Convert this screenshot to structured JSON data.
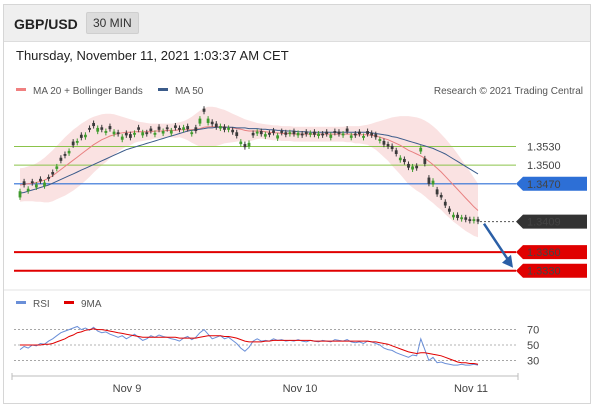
{
  "header": {
    "symbol": "GBP/USD",
    "timeframe": "30 MIN",
    "datetime": "Thursday, November 11, 2021 1:03:37 AM CET"
  },
  "legend": {
    "price": [
      {
        "name": "MA 20 + Bollinger Bands",
        "color": "#f08080"
      },
      {
        "name": "MA 50",
        "color": "#3b5b8a"
      }
    ],
    "rsi": [
      {
        "name": "RSI",
        "color": "#6a8fd8"
      },
      {
        "name": "9MA",
        "color": "#e00000"
      }
    ]
  },
  "credit": "Research © 2021 Trading Central",
  "chart_data": {
    "type": "candlestick",
    "price_ylim": [
      1.3315,
      1.3605
    ],
    "rsi_ylim": [
      15,
      85
    ],
    "x_ticks": [
      "Nov 9",
      "Nov 10",
      "Nov 11"
    ],
    "close": [
      1.3458,
      1.3468,
      1.3462,
      1.3471,
      1.3469,
      1.3474,
      1.3472,
      1.3478,
      1.3485,
      1.3498,
      1.3507,
      1.3515,
      1.3523,
      1.3532,
      1.3539,
      1.3544,
      1.3549,
      1.3557,
      1.3563,
      1.356,
      1.3557,
      1.3555,
      1.3558,
      1.3554,
      1.355,
      1.3546,
      1.3548,
      1.3544,
      1.3552,
      1.3557,
      1.3553,
      1.355,
      1.3555,
      1.3552,
      1.3557,
      1.3555,
      1.3558,
      1.3556,
      1.356,
      1.3557,
      1.3561,
      1.3558,
      1.3553,
      1.3555,
      1.3575,
      1.3586,
      1.3575,
      1.3566,
      1.3561,
      1.3563,
      1.3557,
      1.356,
      1.3553,
      1.3547,
      1.3538,
      1.3529,
      1.3536,
      1.3548,
      1.3554,
      1.355,
      1.355,
      1.3549,
      1.3552,
      1.3548,
      1.3552,
      1.3549,
      1.3553,
      1.355,
      1.3552,
      1.3548,
      1.355,
      1.3552,
      1.3549,
      1.3551,
      1.3548,
      1.355,
      1.3549,
      1.3552,
      1.355,
      1.3551,
      1.3554,
      1.3548,
      1.3548,
      1.355,
      1.3547,
      1.355,
      1.3548,
      1.3545,
      1.3542,
      1.3533,
      1.353,
      1.3526,
      1.3518,
      1.3512,
      1.3505,
      1.3496,
      1.3498,
      1.3495,
      1.3528,
      1.3502,
      1.347,
      1.3475,
      1.3453,
      1.3448,
      1.3435,
      1.3425,
      1.342,
      1.3415,
      1.3416,
      1.3412,
      1.341,
      1.3413,
      1.3409
    ],
    "open_offsets": [
      -0.001,
      0.0006,
      -0.0004,
      0.0003,
      -0.0005,
      0.0004,
      -0.0006,
      0.0003,
      0.0004,
      -0.0004,
      0.0005,
      0.0003,
      -0.0004,
      0.0006,
      -0.0003,
      0.0005,
      -0.0004,
      0.0003,
      0.0005,
      -0.0006,
      0.0004,
      -0.0003,
      0.0005,
      -0.0004,
      0.0003,
      -0.0005,
      0.0004,
      0.0006,
      -0.0003,
      0.0004,
      -0.0005,
      0.0003,
      0.0004,
      -0.0003,
      0.0005,
      -0.0004,
      0.0003,
      -0.0005,
      0.0004,
      0.0003,
      -0.0004,
      0.0005,
      -0.0003,
      0.0006,
      -0.0008,
      0.0005,
      -0.0007,
      0.0004,
      0.0006,
      -0.0004,
      0.0005,
      -0.0003,
      0.0004,
      0.0006,
      -0.0004,
      0.0005,
      -0.0006,
      0.0004,
      -0.0003,
      0.0005,
      -0.0004,
      0.0003,
      0.0004,
      -0.0005,
      0.0003,
      0.0004,
      -0.0003,
      0.0005,
      -0.0004,
      0.0003,
      0.0004,
      -0.0003,
      0.0005,
      -0.0004,
      0.0003,
      0.0004,
      -0.0005,
      0.0003,
      0.0004,
      -0.0003,
      0.0005,
      -0.0004,
      0.0003,
      0.0004,
      -0.0003,
      0.0005,
      0.0004,
      0.0005,
      -0.0003,
      0.0006,
      0.0004,
      0.0005,
      0.0006,
      -0.0004,
      0.0005,
      0.0006,
      -0.0005,
      0.0004,
      -0.0006,
      0.0009,
      0.001,
      -0.0006,
      0.0008,
      0.0004,
      0.0006,
      0.0005,
      -0.0004,
      0.0005,
      -0.0003,
      0.0004,
      0.0003,
      -0.0003,
      0.0004
    ],
    "ma20": [
      1.3468,
      1.3469,
      1.347,
      1.3471,
      1.3472,
      1.3474,
      1.3476,
      1.3479,
      1.3483,
      1.3488,
      1.3493,
      1.3498,
      1.3503,
      1.3508,
      1.3513,
      1.3518,
      1.3523,
      1.3528,
      1.3533,
      1.3537,
      1.3541,
      1.3544,
      1.3547,
      1.3549,
      1.3551,
      1.3552,
      1.3553,
      1.3553,
      1.3554,
      1.3554,
      1.3554,
      1.3554,
      1.3554,
      1.3555,
      1.3555,
      1.3555,
      1.3556,
      1.3556,
      1.3556,
      1.3557,
      1.3557,
      1.3557,
      1.3557,
      1.3558,
      1.3559,
      1.3561,
      1.3562,
      1.3562,
      1.3562,
      1.3562,
      1.3562,
      1.3561,
      1.356,
      1.3559,
      1.3558,
      1.3556,
      1.3555,
      1.3555,
      1.3555,
      1.3555,
      1.3554,
      1.3553,
      1.3552,
      1.3552,
      1.3551,
      1.3551,
      1.3551,
      1.355,
      1.355,
      1.355,
      1.355,
      1.355,
      1.355,
      1.355,
      1.355,
      1.355,
      1.355,
      1.355,
      1.355,
      1.355,
      1.355,
      1.355,
      1.3549,
      1.3549,
      1.3549,
      1.3549,
      1.3548,
      1.3547,
      1.3545,
      1.3543,
      1.3541,
      1.3538,
      1.3535,
      1.3532,
      1.3528,
      1.3524,
      1.3521,
      1.3518,
      1.3515,
      1.3511,
      1.3506,
      1.3501,
      1.3495,
      1.3489,
      1.3482,
      1.3475,
      1.3468,
      1.3461,
      1.3454,
      1.3447,
      1.344,
      1.3433,
      1.3427
    ],
    "bb_upper": [
      1.3495,
      1.3496,
      1.3498,
      1.35,
      1.3503,
      1.3507,
      1.3512,
      1.3518,
      1.3524,
      1.3531,
      1.3538,
      1.3545,
      1.3551,
      1.3557,
      1.3562,
      1.3567,
      1.3571,
      1.3575,
      1.3578,
      1.358,
      1.3582,
      1.3583,
      1.3583,
      1.3582,
      1.358,
      1.3578,
      1.3576,
      1.3574,
      1.3572,
      1.357,
      1.3569,
      1.3568,
      1.3567,
      1.3567,
      1.3567,
      1.3567,
      1.3567,
      1.3567,
      1.3568,
      1.3569,
      1.3571,
      1.3574,
      1.3578,
      1.3583,
      1.3588,
      1.3592,
      1.3594,
      1.3594,
      1.3593,
      1.3591,
      1.3589,
      1.3586,
      1.3583,
      1.358,
      1.3577,
      1.3574,
      1.3572,
      1.357,
      1.3568,
      1.3567,
      1.3566,
      1.3565,
      1.3564,
      1.3564,
      1.3563,
      1.3563,
      1.3563,
      1.3562,
      1.3562,
      1.3562,
      1.3562,
      1.3562,
      1.3562,
      1.3562,
      1.3562,
      1.3562,
      1.3562,
      1.3562,
      1.3562,
      1.3562,
      1.3563,
      1.3563,
      1.3563,
      1.3563,
      1.3564,
      1.3565,
      1.3567,
      1.3569,
      1.3571,
      1.3573,
      1.3575,
      1.3577,
      1.3578,
      1.3579,
      1.3579,
      1.3579,
      1.3578,
      1.3577,
      1.3575,
      1.3572,
      1.3568,
      1.3563,
      1.3557,
      1.355,
      1.3543,
      1.3535,
      1.3527,
      1.3518,
      1.3509,
      1.35,
      1.349,
      1.348,
      1.347
    ],
    "bb_lower": [
      1.3441,
      1.3442,
      1.3442,
      1.3442,
      1.3441,
      1.3441,
      1.344,
      1.344,
      1.3442,
      1.3445,
      1.3448,
      1.3451,
      1.3455,
      1.3459,
      1.3464,
      1.3469,
      1.3475,
      1.3481,
      1.3488,
      1.3494,
      1.35,
      1.3505,
      1.3511,
      1.3516,
      1.3522,
      1.3526,
      1.353,
      1.3532,
      1.3536,
      1.3538,
      1.3539,
      1.354,
      1.3541,
      1.3543,
      1.3543,
      1.3543,
      1.3545,
      1.3545,
      1.3544,
      1.3545,
      1.3543,
      1.354,
      1.3536,
      1.3533,
      1.353,
      1.353,
      1.353,
      1.353,
      1.3531,
      1.3533,
      1.3535,
      1.3536,
      1.3537,
      1.3538,
      1.3539,
      1.3538,
      1.3538,
      1.354,
      1.3542,
      1.3543,
      1.3542,
      1.3541,
      1.354,
      1.354,
      1.3539,
      1.3539,
      1.3539,
      1.3538,
      1.3538,
      1.3538,
      1.3538,
      1.3538,
      1.3538,
      1.3538,
      1.3538,
      1.3538,
      1.3538,
      1.3538,
      1.3538,
      1.3538,
      1.3537,
      1.3537,
      1.3535,
      1.3535,
      1.3534,
      1.3533,
      1.3529,
      1.3525,
      1.3519,
      1.3513,
      1.3507,
      1.3499,
      1.3492,
      1.3485,
      1.3477,
      1.3469,
      1.3464,
      1.3459,
      1.3455,
      1.345,
      1.3444,
      1.3439,
      1.3433,
      1.3428,
      1.3421,
      1.3415,
      1.3409,
      1.3404,
      1.3399,
      1.3394,
      1.339,
      1.3386,
      1.3384
    ],
    "ma50": [
      1.3455,
      1.3456,
      1.3458,
      1.346,
      1.3462,
      1.3464,
      1.3466,
      1.3468,
      1.3471,
      1.3474,
      1.3477,
      1.348,
      1.3483,
      1.3486,
      1.3489,
      1.3492,
      1.3495,
      1.3498,
      1.3501,
      1.3504,
      1.3507,
      1.351,
      1.3513,
      1.3516,
      1.3519,
      1.3522,
      1.3525,
      1.3527,
      1.3529,
      1.3531,
      1.3533,
      1.3535,
      1.3537,
      1.3539,
      1.3541,
      1.3543,
      1.3545,
      1.3547,
      1.3549,
      1.3551,
      1.3553,
      1.3555,
      1.3556,
      1.3557,
      1.3558,
      1.3559,
      1.356,
      1.356,
      1.3561,
      1.3561,
      1.3561,
      1.3561,
      1.3561,
      1.356,
      1.356,
      1.356,
      1.3559,
      1.3559,
      1.3559,
      1.3558,
      1.3558,
      1.3557,
      1.3557,
      1.3556,
      1.3556,
      1.3555,
      1.3555,
      1.3555,
      1.3554,
      1.3554,
      1.3554,
      1.3553,
      1.3553,
      1.3553,
      1.3553,
      1.3553,
      1.3553,
      1.3553,
      1.3553,
      1.3553,
      1.3553,
      1.3553,
      1.3553,
      1.3553,
      1.3553,
      1.3553,
      1.3552,
      1.3551,
      1.355,
      1.3549,
      1.3548,
      1.3546,
      1.3545,
      1.3543,
      1.3541,
      1.3539,
      1.3537,
      1.3535,
      1.3533,
      1.3531,
      1.3529,
      1.3527,
      1.3524,
      1.3521,
      1.3518,
      1.3514,
      1.351,
      1.3506,
      1.3502,
      1.3498,
      1.3494,
      1.349,
      1.3486
    ],
    "rsi": [
      44,
      48,
      46,
      50,
      49,
      52,
      51,
      55,
      58,
      62,
      66,
      68,
      70,
      72,
      74,
      70,
      72,
      69,
      73,
      68,
      66,
      67,
      64,
      62,
      60,
      62,
      58,
      61,
      64,
      60,
      56,
      58,
      62,
      60,
      63,
      61,
      60,
      58,
      57,
      55,
      59,
      61,
      57,
      60,
      66,
      70,
      64,
      58,
      60,
      62,
      58,
      60,
      56,
      52,
      46,
      42,
      47,
      55,
      58,
      55,
      56,
      55,
      58,
      56,
      57,
      55,
      56,
      55,
      57,
      55,
      54,
      56,
      55,
      54,
      56,
      55,
      54,
      57,
      56,
      55,
      57,
      54,
      53,
      54,
      52,
      55,
      54,
      52,
      50,
      46,
      44,
      43,
      40,
      38,
      36,
      34,
      37,
      36,
      58,
      44,
      30,
      34,
      27,
      28,
      26,
      25,
      24,
      24,
      25,
      24,
      24,
      25,
      24
    ],
    "rsi_ma9": [
      50,
      50,
      50,
      50,
      50,
      50,
      51,
      51,
      52,
      54,
      56,
      58,
      61,
      63,
      66,
      67,
      69,
      70,
      71,
      70,
      70,
      69,
      68,
      67,
      66,
      65,
      64,
      63,
      62,
      61,
      60,
      60,
      60,
      60,
      60,
      60,
      60,
      60,
      60,
      59,
      59,
      59,
      59,
      59,
      60,
      61,
      62,
      62,
      62,
      62,
      61,
      61,
      60,
      59,
      57,
      55,
      54,
      54,
      54,
      54,
      55,
      55,
      56,
      56,
      56,
      56,
      56,
      56,
      56,
      56,
      56,
      56,
      55,
      55,
      55,
      55,
      55,
      55,
      55,
      55,
      55,
      55,
      55,
      55,
      55,
      55,
      54,
      54,
      53,
      52,
      51,
      49,
      47,
      45,
      43,
      41,
      40,
      39,
      40,
      40,
      39,
      38,
      37,
      36,
      34,
      32,
      30,
      28,
      27,
      27,
      26,
      26,
      25
    ],
    "levels": [
      {
        "value": 1.353,
        "label": "1.3530",
        "style": "support-line",
        "color": "#8bc34a"
      },
      {
        "value": 1.35,
        "label": "1.3500",
        "style": "support-line",
        "color": "#8bc34a"
      },
      {
        "value": 1.347,
        "label": "1.3470",
        "style": "pivot",
        "color": "#2d6fd6"
      },
      {
        "value": 1.3409,
        "label": "1.3409",
        "style": "last-price",
        "color": "#333333"
      },
      {
        "value": 1.336,
        "label": "1.3360",
        "style": "target",
        "color": "#e00000"
      },
      {
        "value": 1.333,
        "label": "1.3330",
        "style": "target",
        "color": "#e00000"
      }
    ],
    "rsi_levels": [
      {
        "value": 70,
        "label": "70"
      },
      {
        "value": 50,
        "label": "50"
      },
      {
        "value": 30,
        "label": "30"
      }
    ]
  }
}
